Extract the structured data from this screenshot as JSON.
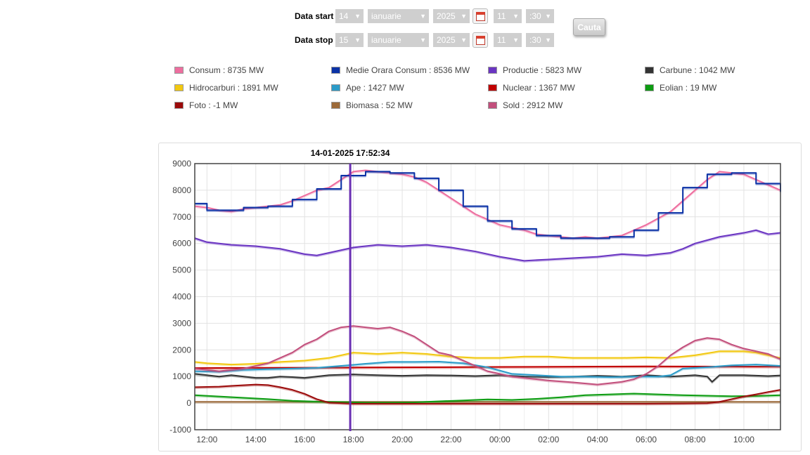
{
  "form": {
    "start": {
      "label": "Data start",
      "day": "14",
      "month": "ianuarie",
      "year": "2025",
      "hour": "11",
      "minute": ":30"
    },
    "stop": {
      "label": "Data stop",
      "day": "15",
      "month": "ianuarie",
      "year": "2025",
      "hour": "11",
      "minute": ":30"
    },
    "search_label": "Cauta"
  },
  "legend": [
    {
      "text": "Consum : 8735 MW",
      "color": "#ee6e9f"
    },
    {
      "text": "Medie Orara Consum : 8536 MW",
      "color": "#0b32a6"
    },
    {
      "text": "Productie : 5823 MW",
      "color": "#6a35c2"
    },
    {
      "text": "Carbune : 1042 MW",
      "color": "#333333"
    },
    {
      "text": "Hidrocarburi : 1891 MW",
      "color": "#f2c811"
    },
    {
      "text": "Ape : 1427 MW",
      "color": "#2b9bc8"
    },
    {
      "text": "Nuclear : 1367 MW",
      "color": "#c00000"
    },
    {
      "text": "Eolian : 19 MW",
      "color": "#0d9c12"
    },
    {
      "text": "Foto : -1 MW",
      "color": "#9b0a0a"
    },
    {
      "text": "Biomasa : 52 MW",
      "color": "#9c6a3a"
    },
    {
      "text": "Sold : 2912 MW",
      "color": "#c24f7c"
    }
  ],
  "chart_data": {
    "type": "line",
    "cursor_label": "14-01-2025 17:52:34",
    "cursor_x": 17.87,
    "xlim": [
      11.5,
      35.5
    ],
    "ylim": [
      -1000,
      9000
    ],
    "yticks": [
      -1000,
      0,
      1000,
      2000,
      3000,
      4000,
      5000,
      6000,
      7000,
      8000,
      9000
    ],
    "xticks": [
      {
        "x": 12,
        "label": "12:00"
      },
      {
        "x": 14,
        "label": "14:00"
      },
      {
        "x": 16,
        "label": "16:00"
      },
      {
        "x": 18,
        "label": "18:00"
      },
      {
        "x": 20,
        "label": "20:00"
      },
      {
        "x": 22,
        "label": "22:00"
      },
      {
        "x": 24,
        "label": "00:00"
      },
      {
        "x": 26,
        "label": "02:00"
      },
      {
        "x": 28,
        "label": "04:00"
      },
      {
        "x": 30,
        "label": "06:00"
      },
      {
        "x": 32,
        "label": "08:00"
      },
      {
        "x": 34,
        "label": "10:00"
      }
    ],
    "grid": true,
    "series": [
      {
        "color": "#9c6a3a",
        "x": [
          11.5,
          35.5
        ],
        "y": [
          50,
          50
        ]
      },
      {
        "color": "#0d9c12",
        "x": [
          11.5,
          12.5,
          13.5,
          14.5,
          15.5,
          16.5,
          17.5,
          18.5,
          19.5,
          20.5,
          21.5,
          22.5,
          23.5,
          24.5,
          25.5,
          26.5,
          27.5,
          28.5,
          29.5,
          30.5,
          31.5,
          32.5,
          33.5,
          34.5,
          35.5
        ],
        "y": [
          300,
          250,
          200,
          150,
          90,
          60,
          40,
          20,
          20,
          30,
          70,
          100,
          140,
          120,
          160,
          220,
          300,
          330,
          360,
          330,
          300,
          280,
          260,
          270,
          300
        ]
      },
      {
        "color": "#9b0a0a",
        "x": [
          11.5,
          12.5,
          13.0,
          14.0,
          14.5,
          15.0,
          15.5,
          16.0,
          16.5,
          17.0,
          18.0,
          30.0,
          31.5,
          32.5,
          33.0,
          33.5,
          34.0,
          34.5,
          35.0,
          35.5
        ],
        "y": [
          600,
          620,
          650,
          700,
          680,
          600,
          500,
          350,
          150,
          20,
          -20,
          -20,
          -10,
          0,
          50,
          150,
          250,
          330,
          420,
          500
        ]
      },
      {
        "color": "#333333",
        "x": [
          11.5,
          12.0,
          12.5,
          13.0,
          13.5,
          14.0,
          14.5,
          15.0,
          15.5,
          16.0,
          17.0,
          18.0,
          19.0,
          20.0,
          21.0,
          22.0,
          23.0,
          24.0,
          25.0,
          26.0,
          27.0,
          28.0,
          29.0,
          30.0,
          31.0,
          32.0,
          32.5,
          32.7,
          33.0,
          34.0,
          35.0,
          35.5
        ],
        "y": [
          1100,
          1050,
          1000,
          1050,
          1000,
          950,
          950,
          1000,
          980,
          950,
          1050,
          1080,
          1050,
          1030,
          1050,
          1040,
          1020,
          1050,
          1000,
          980,
          1000,
          1030,
          1000,
          1050,
          1000,
          1050,
          1000,
          800,
          1050,
          1050,
          1020,
          1040
        ]
      },
      {
        "color": "#c00000",
        "x": [
          11.5,
          18.0,
          24.0,
          30.0,
          35.5
        ],
        "y": [
          1320,
          1340,
          1360,
          1380,
          1370
        ]
      },
      {
        "color": "#2b9bc8",
        "x": [
          11.5,
          12.5,
          13.5,
          14.5,
          15.5,
          16.5,
          17.5,
          18.5,
          19.5,
          20.5,
          21.5,
          22.5,
          23.5,
          24.5,
          25.5,
          26.5,
          27.5,
          28.5,
          29.5,
          30.5,
          31.0,
          31.5,
          32.5,
          33.5,
          34.5,
          35.5
        ],
        "y": [
          1200,
          1180,
          1250,
          1280,
          1300,
          1330,
          1400,
          1480,
          1550,
          1550,
          1560,
          1500,
          1350,
          1100,
          1050,
          1000,
          1000,
          980,
          1000,
          1000,
          1050,
          1300,
          1350,
          1420,
          1450,
          1400
        ]
      },
      {
        "color": "#f2c811",
        "x": [
          11.5,
          12.0,
          13.0,
          14.0,
          15.0,
          16.0,
          17.0,
          18.0,
          19.0,
          20.0,
          21.0,
          22.0,
          23.0,
          24.0,
          25.0,
          26.0,
          27.0,
          28.0,
          29.0,
          30.0,
          31.0,
          32.0,
          33.0,
          34.0,
          34.5,
          35.0,
          35.5
        ],
        "y": [
          1550,
          1500,
          1450,
          1480,
          1550,
          1600,
          1700,
          1900,
          1850,
          1900,
          1850,
          1750,
          1700,
          1700,
          1750,
          1750,
          1700,
          1700,
          1700,
          1720,
          1700,
          1800,
          1950,
          1950,
          1900,
          1800,
          1700
        ]
      },
      {
        "color": "#c24f7c",
        "x": [
          11.5,
          12.5,
          13.5,
          14.5,
          15.0,
          15.5,
          16.0,
          16.5,
          17.0,
          17.5,
          18.0,
          18.5,
          19.0,
          19.5,
          20.0,
          20.5,
          21.0,
          21.5,
          22.0,
          22.5,
          23.0,
          23.5,
          24.0,
          24.5,
          25.0,
          25.5,
          26.0,
          27.0,
          28.0,
          29.0,
          29.5,
          30.0,
          30.5,
          31.0,
          31.5,
          32.0,
          32.5,
          33.0,
          33.5,
          34.0,
          34.5,
          35.0,
          35.5
        ],
        "y": [
          1300,
          1200,
          1300,
          1500,
          1700,
          1900,
          2200,
          2400,
          2700,
          2850,
          2900,
          2850,
          2800,
          2850,
          2700,
          2500,
          2200,
          1900,
          1800,
          1600,
          1400,
          1200,
          1100,
          1000,
          950,
          900,
          850,
          780,
          700,
          800,
          900,
          1100,
          1400,
          1800,
          2100,
          2350,
          2450,
          2400,
          2200,
          2050,
          1950,
          1850,
          1650
        ]
      },
      {
        "color": "#6a35c2",
        "x": [
          11.5,
          12.0,
          12.5,
          13.0,
          14.0,
          15.0,
          16.0,
          16.5,
          17.0,
          18.0,
          19.0,
          20.0,
          21.0,
          22.0,
          23.0,
          24.0,
          25.0,
          26.0,
          27.0,
          28.0,
          29.0,
          30.0,
          31.0,
          31.5,
          32.0,
          33.0,
          34.0,
          34.5,
          35.0,
          35.5
        ],
        "y": [
          6200,
          6050,
          6000,
          5950,
          5900,
          5800,
          5600,
          5550,
          5650,
          5850,
          5950,
          5900,
          5950,
          5850,
          5700,
          5500,
          5350,
          5400,
          5450,
          5500,
          5600,
          5550,
          5650,
          5800,
          6000,
          6250,
          6400,
          6500,
          6350,
          6400
        ]
      },
      {
        "color": "#ee6e9f",
        "x": [
          11.5,
          12.0,
          12.5,
          13.0,
          13.5,
          14.0,
          14.5,
          15.0,
          15.5,
          16.0,
          16.5,
          17.0,
          17.5,
          18.0,
          18.5,
          19.0,
          19.5,
          20.0,
          20.5,
          21.0,
          21.5,
          22.0,
          22.5,
          23.0,
          23.5,
          24.0,
          24.5,
          25.0,
          25.5,
          26.0,
          26.5,
          27.0,
          27.5,
          28.0,
          28.5,
          29.0,
          29.5,
          30.0,
          30.5,
          31.0,
          31.5,
          32.0,
          32.5,
          33.0,
          33.5,
          34.0,
          34.5,
          35.0,
          35.5
        ],
        "y": [
          7400,
          7350,
          7250,
          7200,
          7300,
          7350,
          7400,
          7450,
          7600,
          7800,
          8000,
          8100,
          8400,
          8700,
          8750,
          8700,
          8650,
          8600,
          8500,
          8300,
          8000,
          7700,
          7400,
          7100,
          6900,
          6700,
          6600,
          6500,
          6350,
          6300,
          6250,
          6200,
          6250,
          6200,
          6250,
          6300,
          6500,
          6700,
          6950,
          7200,
          7600,
          8000,
          8400,
          8700,
          8650,
          8600,
          8400,
          8200,
          8000
        ]
      },
      {
        "color": "#0b32a6",
        "step": true,
        "x": [
          11.5,
          12.0,
          12.5,
          13.0,
          13.5,
          14.0,
          14.5,
          15.0,
          15.5,
          16.0,
          16.5,
          17.0,
          17.5,
          18.0,
          18.5,
          19.0,
          19.5,
          20.0,
          20.5,
          21.0,
          21.5,
          22.0,
          22.5,
          23.0,
          23.5,
          24.0,
          24.5,
          25.0,
          25.5,
          26.0,
          26.5,
          27.0,
          27.5,
          28.0,
          28.5,
          29.0,
          29.5,
          30.0,
          30.5,
          31.0,
          31.5,
          32.0,
          32.5,
          33.0,
          33.5,
          34.0,
          34.5,
          35.0,
          35.5
        ],
        "y": [
          7500,
          7250,
          7250,
          7250,
          7350,
          7350,
          7400,
          7400,
          7650,
          7650,
          8050,
          8050,
          8550,
          8550,
          8700,
          8700,
          8650,
          8650,
          8450,
          8450,
          8000,
          8000,
          7400,
          7400,
          6850,
          6850,
          6550,
          6550,
          6300,
          6300,
          6200,
          6200,
          6200,
          6200,
          6250,
          6250,
          6500,
          6500,
          7150,
          7150,
          8100,
          8100,
          8600,
          8600,
          8650,
          8650,
          8250,
          8250,
          7950
        ]
      }
    ]
  }
}
